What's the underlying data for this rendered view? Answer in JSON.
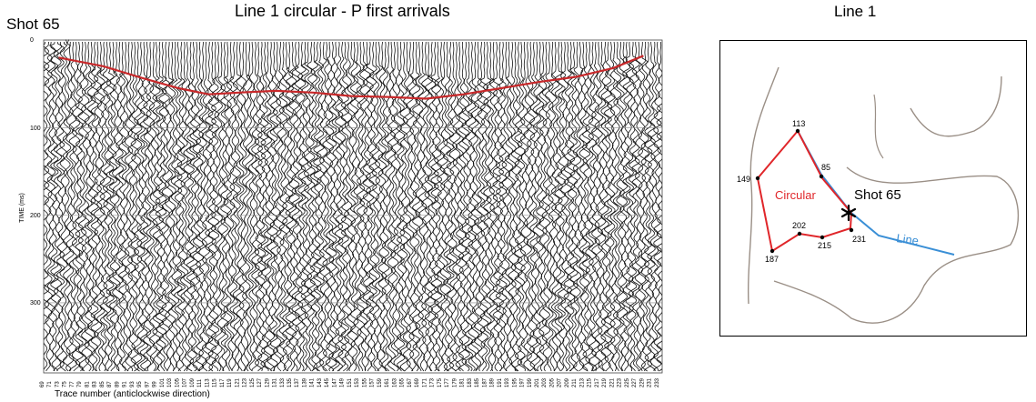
{
  "seismic": {
    "title": "Line 1  circular - P first arrivals",
    "shot_label": "Shot 65",
    "shot_marker": "v",
    "xlabel": "Trace number (anticlockwise direction)",
    "ylabel": "TIME (ms)",
    "y_ticks": [
      "0",
      "100",
      "200",
      "300"
    ],
    "first_arrival_color": "#c8282a"
  },
  "map": {
    "title": "Line 1",
    "labels": {
      "p113": "113",
      "p149": "149",
      "p85": "85",
      "p202": "202",
      "p215": "215",
      "p231": "231",
      "p187": "187",
      "circular": "Circular",
      "line": "Line",
      "shot": "Shot 65"
    },
    "colors": {
      "circular": "#e0262a",
      "line": "#3a8fd6",
      "outline": "#9a8f86"
    }
  },
  "chart_data": {
    "type": "line",
    "title": "Line 1  circular - P first arrivals",
    "xlabel": "Trace number (anticlockwise direction)",
    "ylabel": "TIME (ms)",
    "ylim": [
      0,
      380
    ],
    "x": [
      73,
      85,
      95,
      105,
      113,
      121,
      131,
      141,
      151,
      161,
      171,
      181,
      191,
      201,
      211,
      221,
      229
    ],
    "series": [
      {
        "values": [
          20,
          30,
          43,
          55,
          62,
          60,
          58,
          60,
          64,
          65,
          67,
          62,
          55,
          48,
          42,
          32,
          18
        ]
      }
    ]
  }
}
